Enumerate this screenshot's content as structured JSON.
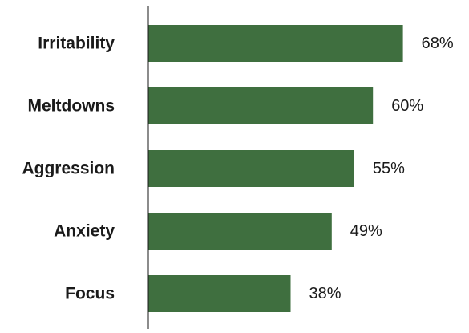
{
  "chart_data": {
    "type": "bar",
    "orientation": "horizontal",
    "categories": [
      "Irritability",
      "Meltdowns",
      "Aggression",
      "Anxiety",
      "Focus"
    ],
    "values": [
      68,
      60,
      55,
      49,
      38
    ],
    "value_labels": [
      "68%",
      "60%",
      "55%",
      "49%",
      "38%"
    ],
    "unit": "%",
    "xlim": [
      0,
      100
    ],
    "grid": false,
    "legend": "none",
    "bar_color": "#3f6f3f",
    "axis_color": "#1a1a1a"
  }
}
